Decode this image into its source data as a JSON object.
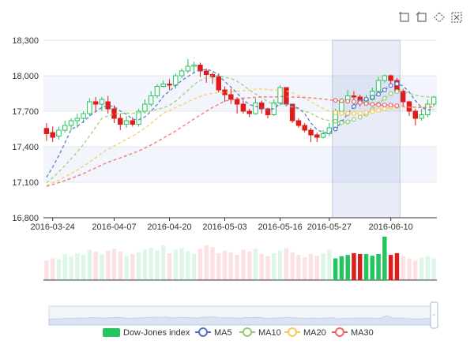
{
  "chart_data": {
    "type": "candlestick",
    "title": "",
    "toolbox": [
      "rect-select-icon",
      "polygon-select-icon",
      "keep-select-icon",
      "clear-select-icon"
    ],
    "y_axis": {
      "min": 16800,
      "max": 18300,
      "ticks": [
        "16,800",
        "17,100",
        "17,400",
        "17,700",
        "18,000",
        "18,300"
      ]
    },
    "x_tick_labels": [
      "2016-03-24",
      "2016-04-07",
      "2016-04-20",
      "2016-05-03",
      "2016-05-16",
      "2016-05-27",
      "2016-06-10"
    ],
    "x_tick_index": [
      1,
      11,
      20,
      29,
      38,
      46,
      56
    ],
    "brush_range": [
      47,
      58
    ],
    "colors": {
      "up": "#22c55e",
      "down": "#e01b1b",
      "ma5": "#5470c6",
      "ma10": "#91cc75",
      "ma20": "#fac858",
      "ma30": "#ee6666"
    },
    "legend": [
      "Dow-Jones index",
      "MA5",
      "MA10",
      "MA20",
      "MA30"
    ],
    "candles": [
      [
        17555,
        17510,
        17600,
        17450
      ],
      [
        17520,
        17480,
        17570,
        17440
      ],
      [
        17490,
        17540,
        17570,
        17460
      ],
      [
        17540,
        17580,
        17620,
        17520
      ],
      [
        17580,
        17620,
        17640,
        17540
      ],
      [
        17620,
        17640,
        17680,
        17560
      ],
      [
        17640,
        17680,
        17700,
        17600
      ],
      [
        17680,
        17780,
        17810,
        17660
      ],
      [
        17780,
        17760,
        17820,
        17700
      ],
      [
        17760,
        17800,
        17820,
        17700
      ],
      [
        17780,
        17720,
        17830,
        17680
      ],
      [
        17720,
        17640,
        17750,
        17600
      ],
      [
        17640,
        17590,
        17680,
        17540
      ],
      [
        17590,
        17620,
        17660,
        17560
      ],
      [
        17620,
        17590,
        17650,
        17570
      ],
      [
        17590,
        17700,
        17720,
        17570
      ],
      [
        17700,
        17760,
        17800,
        17680
      ],
      [
        17760,
        17830,
        17870,
        17740
      ],
      [
        17830,
        17910,
        17930,
        17810
      ],
      [
        17910,
        17930,
        17960,
        17900
      ],
      [
        17930,
        17920,
        17970,
        17880
      ],
      [
        17920,
        18000,
        18020,
        17890
      ],
      [
        18000,
        18040,
        18060,
        17980
      ],
      [
        18040,
        18080,
        18140,
        18020
      ],
      [
        18080,
        18090,
        18120,
        18020
      ],
      [
        18090,
        18040,
        18110,
        17990
      ],
      [
        18040,
        18010,
        18060,
        17940
      ],
      [
        18010,
        17990,
        18030,
        17930
      ],
      [
        17990,
        17880,
        18020,
        17860
      ],
      [
        17880,
        17840,
        17910,
        17780
      ],
      [
        17840,
        17800,
        17890,
        17760
      ],
      [
        17800,
        17760,
        17820,
        17680
      ],
      [
        17760,
        17700,
        17790,
        17680
      ],
      [
        17700,
        17680,
        17720,
        17650
      ],
      [
        17680,
        17770,
        17810,
        17670
      ],
      [
        17770,
        17720,
        17790,
        17680
      ],
      [
        17720,
        17670,
        17730,
        17640
      ],
      [
        17670,
        17770,
        17800,
        17660
      ],
      [
        17770,
        17900,
        17920,
        17750
      ],
      [
        17900,
        17760,
        17900,
        17740
      ],
      [
        17760,
        17620,
        17760,
        17600
      ],
      [
        17620,
        17580,
        17640,
        17560
      ],
      [
        17580,
        17540,
        17600,
        17520
      ],
      [
        17540,
        17500,
        17560,
        17440
      ],
      [
        17500,
        17480,
        17520,
        17440
      ],
      [
        17480,
        17510,
        17540,
        17470
      ],
      [
        17510,
        17560,
        17600,
        17490
      ],
      [
        17560,
        17700,
        17720,
        17540
      ],
      [
        17700,
        17790,
        17810,
        17680
      ],
      [
        17790,
        17830,
        17880,
        17770
      ],
      [
        17830,
        17820,
        17870,
        17790
      ],
      [
        17820,
        17770,
        17840,
        17740
      ],
      [
        17770,
        17800,
        17840,
        17760
      ],
      [
        17800,
        17870,
        17900,
        17790
      ],
      [
        17870,
        17960,
        17990,
        17850
      ],
      [
        17960,
        18000,
        18010,
        17940
      ],
      [
        18000,
        17960,
        18010,
        17930
      ],
      [
        17960,
        17870,
        17980,
        17850
      ],
      [
        17870,
        17780,
        17890,
        17740
      ],
      [
        17780,
        17700,
        17790,
        17660
      ],
      [
        17700,
        17640,
        17720,
        17580
      ],
      [
        17640,
        17670,
        17720,
        17620
      ],
      [
        17670,
        17760,
        17800,
        17650
      ],
      [
        17760,
        17820,
        17830,
        17740
      ]
    ],
    "volumes": [
      0.45,
      0.5,
      0.48,
      0.6,
      0.55,
      0.62,
      0.58,
      0.7,
      0.65,
      0.6,
      0.68,
      0.72,
      0.66,
      0.55,
      0.6,
      0.64,
      0.7,
      0.75,
      0.68,
      0.8,
      0.62,
      0.7,
      0.74,
      0.66,
      0.6,
      0.72,
      0.8,
      0.76,
      0.62,
      0.68,
      0.64,
      0.58,
      0.7,
      0.66,
      0.72,
      0.6,
      0.55,
      0.62,
      0.68,
      0.74,
      0.64,
      0.58,
      0.52,
      0.6,
      0.56,
      0.62,
      0.7,
      0.5,
      0.55,
      0.58,
      0.62,
      0.6,
      0.6,
      0.56,
      0.6,
      1.0,
      0.58,
      0.62,
      0.55,
      0.5,
      0.45,
      0.52,
      0.55,
      0.5
    ],
    "ma5": null,
    "ma10": null,
    "ma20": null,
    "ma30": null
  }
}
